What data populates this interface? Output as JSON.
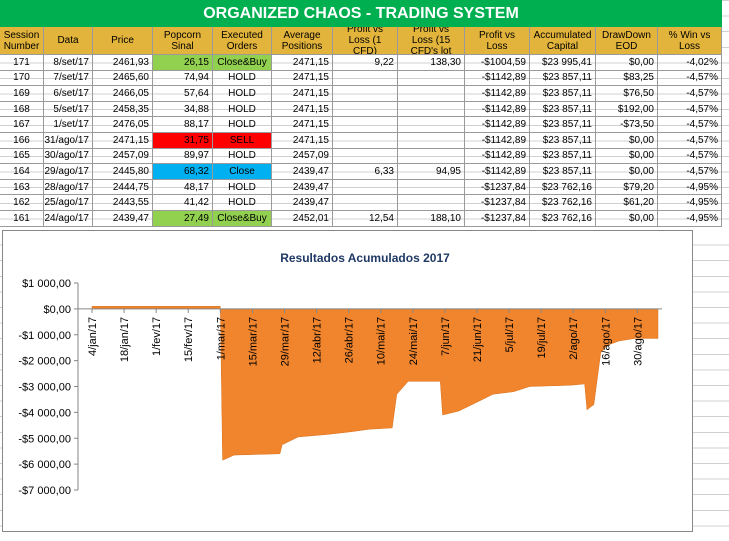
{
  "table": {
    "title": "ORGANIZED CHAOS - TRADING SYSTEM",
    "header": [
      "Session Number",
      "Data",
      "Price",
      "Popcorn Sinal",
      "Executed Orders",
      "Average Positions",
      "Profit vs Loss (1 CFD)",
      "Profit vs Loss (15 CFD's lot",
      "Profit vs Loss",
      "Accumulated Capital",
      "DrawDown EOD",
      "% Win vs Loss"
    ],
    "rows": [
      [
        "171",
        "8/set/17",
        "2461,93",
        "26,15",
        "Close&Buy",
        "2471,15",
        "9,22",
        "138,30",
        "-$1004,59",
        "$23 995,41",
        "$0,00",
        "-4,02%"
      ],
      [
        "170",
        "7/set/17",
        "2465,60",
        "74,94",
        "HOLD",
        "2471,15",
        "",
        "",
        "-$1142,89",
        "$23 857,11",
        "$83,25",
        "-4,57%"
      ],
      [
        "169",
        "6/set/17",
        "2466,05",
        "57,64",
        "HOLD",
        "2471,15",
        "",
        "",
        "-$1142,89",
        "$23 857,11",
        "$76,50",
        "-4,57%"
      ],
      [
        "168",
        "5/set/17",
        "2458,35",
        "34,88",
        "HOLD",
        "2471,15",
        "",
        "",
        "-$1142,89",
        "$23 857,11",
        "$192,00",
        "-4,57%"
      ],
      [
        "167",
        "1/set/17",
        "2476,05",
        "88,17",
        "HOLD",
        "2471,15",
        "",
        "",
        "-$1142,89",
        "$23 857,11",
        "-$73,50",
        "-4,57%"
      ],
      [
        "166",
        "31/ago/17",
        "2471,15",
        "31,75",
        "SELL",
        "2471,15",
        "",
        "",
        "-$1142,89",
        "$23 857,11",
        "$0,00",
        "-4,57%"
      ],
      [
        "165",
        "30/ago/17",
        "2457,09",
        "89,97",
        "HOLD",
        "2457,09",
        "",
        "",
        "-$1142,89",
        "$23 857,11",
        "$0,00",
        "-4,57%"
      ],
      [
        "164",
        "29/ago/17",
        "2445,80",
        "68,32",
        "Close",
        "2439,47",
        "6,33",
        "94,95",
        "-$1142,89",
        "$23 857,11",
        "$0,00",
        "-4,57%"
      ],
      [
        "163",
        "28/ago/17",
        "2444,75",
        "48,17",
        "HOLD",
        "2439,47",
        "",
        "",
        "-$1237,84",
        "$23 762,16",
        "$79,20",
        "-4,95%"
      ],
      [
        "162",
        "25/ago/17",
        "2443,55",
        "41,42",
        "HOLD",
        "2439,47",
        "",
        "",
        "-$1237,84",
        "$23 762,16",
        "$61,20",
        "-4,95%"
      ],
      [
        "161",
        "24/ago/17",
        "2439,47",
        "27,49",
        "Close&Buy",
        "2452,01",
        "12,54",
        "188,10",
        "-$1237,84",
        "$23 762,16",
        "$0,00",
        "-4,95%"
      ]
    ],
    "highlights": [
      {
        "row": 0,
        "color": "#92d050"
      },
      {
        "row": 5,
        "color": "#ff0000"
      },
      {
        "row": 7,
        "color": "#00b0f0"
      },
      {
        "row": 10,
        "color": "#92d050"
      }
    ]
  },
  "chart_data": {
    "type": "area",
    "title": "Resultados Acumulados 2017",
    "color": "#f0852d",
    "x": [
      "2017-01-04",
      "2017-03-01",
      "2017-03-02",
      "2017-03-07",
      "2017-03-27",
      "2017-03-28",
      "2017-04-04",
      "2017-04-17",
      "2017-04-27",
      "2017-05-05",
      "2017-05-15",
      "2017-05-17",
      "2017-05-22",
      "2017-06-05",
      "2017-06-06",
      "2017-06-13",
      "2017-06-20",
      "2017-06-28",
      "2017-07-07",
      "2017-07-14",
      "2017-08-01",
      "2017-08-07",
      "2017-08-08",
      "2017-08-11",
      "2017-08-14",
      "2017-08-17",
      "2017-08-22",
      "2017-08-29",
      "2017-09-08"
    ],
    "values": [
      100,
      100,
      -5850,
      -5650,
      -5600,
      -5250,
      -4950,
      -4850,
      -4750,
      -4650,
      -4600,
      -3300,
      -2800,
      -2800,
      -4100,
      -3950,
      -3650,
      -3300,
      -3200,
      -3000,
      -2950,
      -2900,
      -3900,
      -3700,
      -1700,
      -1400,
      -1240,
      -1140,
      -1143
    ],
    "xlim": [
      "2017-01-04",
      "2017-09-08"
    ],
    "xticks": [
      {
        "value": "2017-01-04",
        "label": "4/jan/17"
      },
      {
        "value": "2017-01-18",
        "label": "18/jan/17"
      },
      {
        "value": "2017-02-01",
        "label": "1/fev/17"
      },
      {
        "value": "2017-02-15",
        "label": "15/fev/17"
      },
      {
        "value": "2017-03-01",
        "label": "1/mar/17"
      },
      {
        "value": "2017-03-15",
        "label": "15/mar/17"
      },
      {
        "value": "2017-03-29",
        "label": "29/mar/17"
      },
      {
        "value": "2017-04-12",
        "label": "12/abr/17"
      },
      {
        "value": "2017-04-26",
        "label": "26/abr/17"
      },
      {
        "value": "2017-05-10",
        "label": "10/mai/17"
      },
      {
        "value": "2017-05-24",
        "label": "24/mai/17"
      },
      {
        "value": "2017-06-07",
        "label": "7/jun/17"
      },
      {
        "value": "2017-06-21",
        "label": "21/jun/17"
      },
      {
        "value": "2017-07-05",
        "label": "5/jul/17"
      },
      {
        "value": "2017-07-19",
        "label": "19/jul/17"
      },
      {
        "value": "2017-08-02",
        "label": "2/ago/17"
      },
      {
        "value": "2017-08-16",
        "label": "16/ago/17"
      },
      {
        "value": "2017-08-30",
        "label": "30/ago/17"
      }
    ],
    "ylim": [
      -7000,
      1000
    ],
    "yticks": [
      {
        "value": 1000,
        "label": "$1 000,00"
      },
      {
        "value": 0,
        "label": "$0,00"
      },
      {
        "value": -1000,
        "label": "-$1 000,00"
      },
      {
        "value": -2000,
        "label": "-$2 000,00"
      },
      {
        "value": -3000,
        "label": "-$3 000,00"
      },
      {
        "value": -4000,
        "label": "-$4 000,00"
      },
      {
        "value": -5000,
        "label": "-$5 000,00"
      },
      {
        "value": -6000,
        "label": "-$6 000,00"
      },
      {
        "value": -7000,
        "label": "-$7 000,00"
      }
    ]
  }
}
